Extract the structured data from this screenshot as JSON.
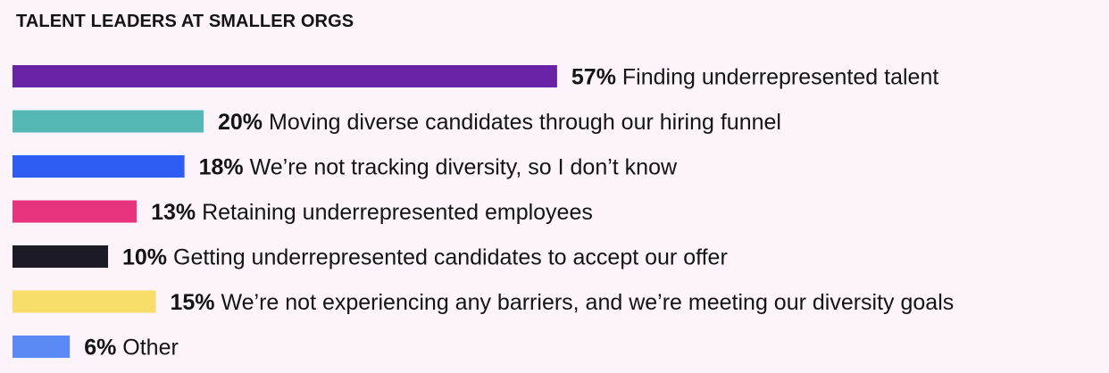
{
  "chart_data": {
    "type": "bar",
    "orientation": "horizontal",
    "title": "TALENT LEADERS AT SMALLER ORGS",
    "grid": false,
    "bars": [
      {
        "value": 57,
        "value_label": "57%",
        "label": "Finding underrepresented talent",
        "color": "#6a23a6"
      },
      {
        "value": 20,
        "value_label": "20%",
        "label": "Moving diverse candidates through our hiring funnel",
        "color": "#55b8b4"
      },
      {
        "value": 18,
        "value_label": "18%",
        "label": "We’re not tracking diversity, so I don’t know",
        "color": "#2d5df2"
      },
      {
        "value": 13,
        "value_label": "13%",
        "label": "Retaining underrepresented employees",
        "color": "#e8347e"
      },
      {
        "value": 10,
        "value_label": "10%",
        "label": "Getting underrepresented candidates to accept our offer",
        "color": "#1c1a24"
      },
      {
        "value": 15,
        "value_label": "15%",
        "label": "We’re not experiencing any barriers, and we’re meeting our diversity goals",
        "color": "#f7de6a"
      },
      {
        "value": 6,
        "value_label": "6%",
        "label": "Other",
        "color": "#5b8af5"
      }
    ]
  }
}
